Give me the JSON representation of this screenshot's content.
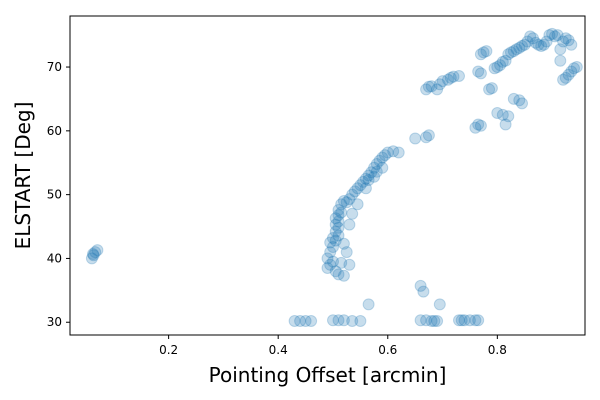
{
  "chart_data": {
    "type": "scatter",
    "title": "",
    "xlabel": "Pointing Offset [arcmin]",
    "ylabel": "ELSTART [Deg]",
    "xlim": [
      0.02,
      0.96
    ],
    "ylim": [
      28,
      78
    ],
    "xticks": [
      0.2,
      0.4,
      0.6,
      0.8
    ],
    "xtick_labels": [
      "0.2",
      "0.4",
      "0.6",
      "0.8"
    ],
    "yticks": [
      30,
      40,
      50,
      60,
      70
    ],
    "ytick_labels": [
      "30",
      "40",
      "50",
      "60",
      "70"
    ],
    "grid": false,
    "marker_color": "#1f77b4",
    "marker_alpha": 0.25,
    "series": [
      {
        "name": "",
        "points": [
          [
            0.06,
            40.0
          ],
          [
            0.063,
            40.5
          ],
          [
            0.066,
            41.0
          ],
          [
            0.07,
            41.3
          ],
          [
            0.062,
            40.7
          ],
          [
            0.43,
            30.2
          ],
          [
            0.44,
            30.2
          ],
          [
            0.45,
            30.2
          ],
          [
            0.46,
            30.2
          ],
          [
            0.5,
            30.3
          ],
          [
            0.51,
            30.3
          ],
          [
            0.52,
            30.3
          ],
          [
            0.535,
            30.2
          ],
          [
            0.55,
            30.2
          ],
          [
            0.565,
            32.8
          ],
          [
            0.66,
            30.3
          ],
          [
            0.67,
            30.3
          ],
          [
            0.68,
            30.2
          ],
          [
            0.685,
            30.2
          ],
          [
            0.69,
            30.2
          ],
          [
            0.66,
            35.7
          ],
          [
            0.665,
            34.8
          ],
          [
            0.695,
            32.8
          ],
          [
            0.73,
            30.3
          ],
          [
            0.735,
            30.3
          ],
          [
            0.74,
            30.3
          ],
          [
            0.75,
            30.3
          ],
          [
            0.76,
            30.3
          ],
          [
            0.765,
            30.3
          ],
          [
            0.49,
            38.5
          ],
          [
            0.495,
            39.0
          ],
          [
            0.5,
            39.5
          ],
          [
            0.49,
            40.0
          ],
          [
            0.495,
            41.0
          ],
          [
            0.5,
            41.8
          ],
          [
            0.495,
            42.5
          ],
          [
            0.505,
            42.8
          ],
          [
            0.5,
            43.2
          ],
          [
            0.51,
            43.6
          ],
          [
            0.505,
            44.2
          ],
          [
            0.51,
            44.8
          ],
          [
            0.505,
            45.3
          ],
          [
            0.51,
            45.8
          ],
          [
            0.505,
            46.3
          ],
          [
            0.51,
            46.8
          ],
          [
            0.515,
            47.2
          ],
          [
            0.51,
            47.6
          ],
          [
            0.505,
            38.0
          ],
          [
            0.51,
            37.5
          ],
          [
            0.52,
            37.3
          ],
          [
            0.515,
            39.3
          ],
          [
            0.525,
            41.0
          ],
          [
            0.53,
            39.0
          ],
          [
            0.52,
            42.3
          ],
          [
            0.515,
            48.5
          ],
          [
            0.52,
            49.0
          ],
          [
            0.525,
            48.8
          ],
          [
            0.53,
            49.3
          ],
          [
            0.535,
            47.0
          ],
          [
            0.53,
            45.3
          ],
          [
            0.535,
            50.0
          ],
          [
            0.54,
            50.5
          ],
          [
            0.545,
            51.0
          ],
          [
            0.545,
            48.5
          ],
          [
            0.55,
            51.5
          ],
          [
            0.555,
            52.0
          ],
          [
            0.56,
            52.5
          ],
          [
            0.565,
            53.0
          ],
          [
            0.56,
            51.0
          ],
          [
            0.565,
            52.3
          ],
          [
            0.57,
            53.5
          ],
          [
            0.575,
            54.2
          ],
          [
            0.58,
            54.8
          ],
          [
            0.585,
            55.3
          ],
          [
            0.575,
            52.8
          ],
          [
            0.58,
            53.6
          ],
          [
            0.59,
            55.8
          ],
          [
            0.595,
            56.2
          ],
          [
            0.6,
            56.6
          ],
          [
            0.61,
            56.8
          ],
          [
            0.62,
            56.6
          ],
          [
            0.59,
            54.2
          ],
          [
            0.65,
            58.8
          ],
          [
            0.67,
            59.0
          ],
          [
            0.675,
            59.3
          ],
          [
            0.67,
            66.5
          ],
          [
            0.675,
            66.9
          ],
          [
            0.68,
            67.0
          ],
          [
            0.69,
            66.5
          ],
          [
            0.695,
            67.3
          ],
          [
            0.7,
            67.8
          ],
          [
            0.71,
            68.0
          ],
          [
            0.715,
            68.3
          ],
          [
            0.72,
            68.5
          ],
          [
            0.73,
            68.6
          ],
          [
            0.76,
            60.5
          ],
          [
            0.765,
            61.0
          ],
          [
            0.77,
            60.8
          ],
          [
            0.8,
            62.8
          ],
          [
            0.81,
            62.5
          ],
          [
            0.815,
            61.0
          ],
          [
            0.82,
            62.3
          ],
          [
            0.83,
            65.0
          ],
          [
            0.84,
            64.8
          ],
          [
            0.845,
            64.3
          ],
          [
            0.765,
            69.3
          ],
          [
            0.77,
            69.0
          ],
          [
            0.77,
            72.0
          ],
          [
            0.775,
            72.3
          ],
          [
            0.78,
            72.5
          ],
          [
            0.785,
            66.5
          ],
          [
            0.79,
            66.7
          ],
          [
            0.795,
            69.8
          ],
          [
            0.8,
            70.0
          ],
          [
            0.805,
            70.3
          ],
          [
            0.81,
            70.8
          ],
          [
            0.815,
            71.0
          ],
          [
            0.82,
            72.0
          ],
          [
            0.825,
            72.3
          ],
          [
            0.83,
            72.5
          ],
          [
            0.835,
            72.8
          ],
          [
            0.84,
            73.0
          ],
          [
            0.845,
            73.3
          ],
          [
            0.85,
            73.5
          ],
          [
            0.855,
            74.0
          ],
          [
            0.86,
            74.8
          ],
          [
            0.865,
            74.5
          ],
          [
            0.87,
            73.8
          ],
          [
            0.875,
            73.5
          ],
          [
            0.88,
            73.3
          ],
          [
            0.885,
            73.5
          ],
          [
            0.89,
            74.0
          ],
          [
            0.895,
            75.0
          ],
          [
            0.9,
            75.2
          ],
          [
            0.905,
            74.8
          ],
          [
            0.91,
            75.0
          ],
          [
            0.915,
            72.8
          ],
          [
            0.915,
            71.0
          ],
          [
            0.92,
            74.0
          ],
          [
            0.925,
            74.5
          ],
          [
            0.93,
            74.2
          ],
          [
            0.935,
            73.5
          ],
          [
            0.92,
            68.0
          ],
          [
            0.925,
            68.3
          ],
          [
            0.93,
            68.8
          ],
          [
            0.935,
            69.3
          ],
          [
            0.94,
            69.8
          ],
          [
            0.945,
            70.0
          ]
        ]
      }
    ]
  }
}
